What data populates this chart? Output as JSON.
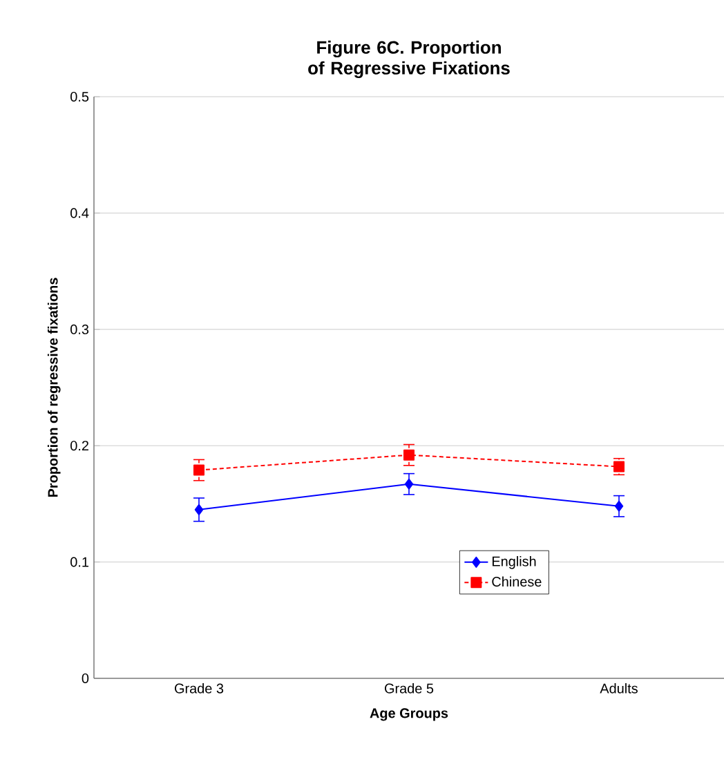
{
  "chart_data": {
    "type": "line",
    "title": "Figure 6C. Proportion of Regressive Fixations",
    "xlabel": "Age Groups",
    "ylabel": "Proportion of regressive fixations",
    "categories": [
      "Grade 3",
      "Grade 5",
      "Adults"
    ],
    "series": [
      {
        "name": "English",
        "color": "#0000ff",
        "marker": "diamond",
        "line_style": "solid",
        "values": [
          0.145,
          0.167,
          0.148
        ],
        "errors": [
          0.01,
          0.009,
          0.009
        ]
      },
      {
        "name": "Chinese",
        "color": "#ff0000",
        "marker": "square",
        "line_style": "dotted",
        "values": [
          0.179,
          0.192,
          0.182
        ],
        "errors": [
          0.009,
          0.009,
          0.007
        ]
      }
    ],
    "ylim": [
      0,
      0.5
    ],
    "yticks": [
      0,
      0.1,
      0.2,
      0.3,
      0.4,
      0.5
    ],
    "grid": "y",
    "legend": "center right"
  }
}
